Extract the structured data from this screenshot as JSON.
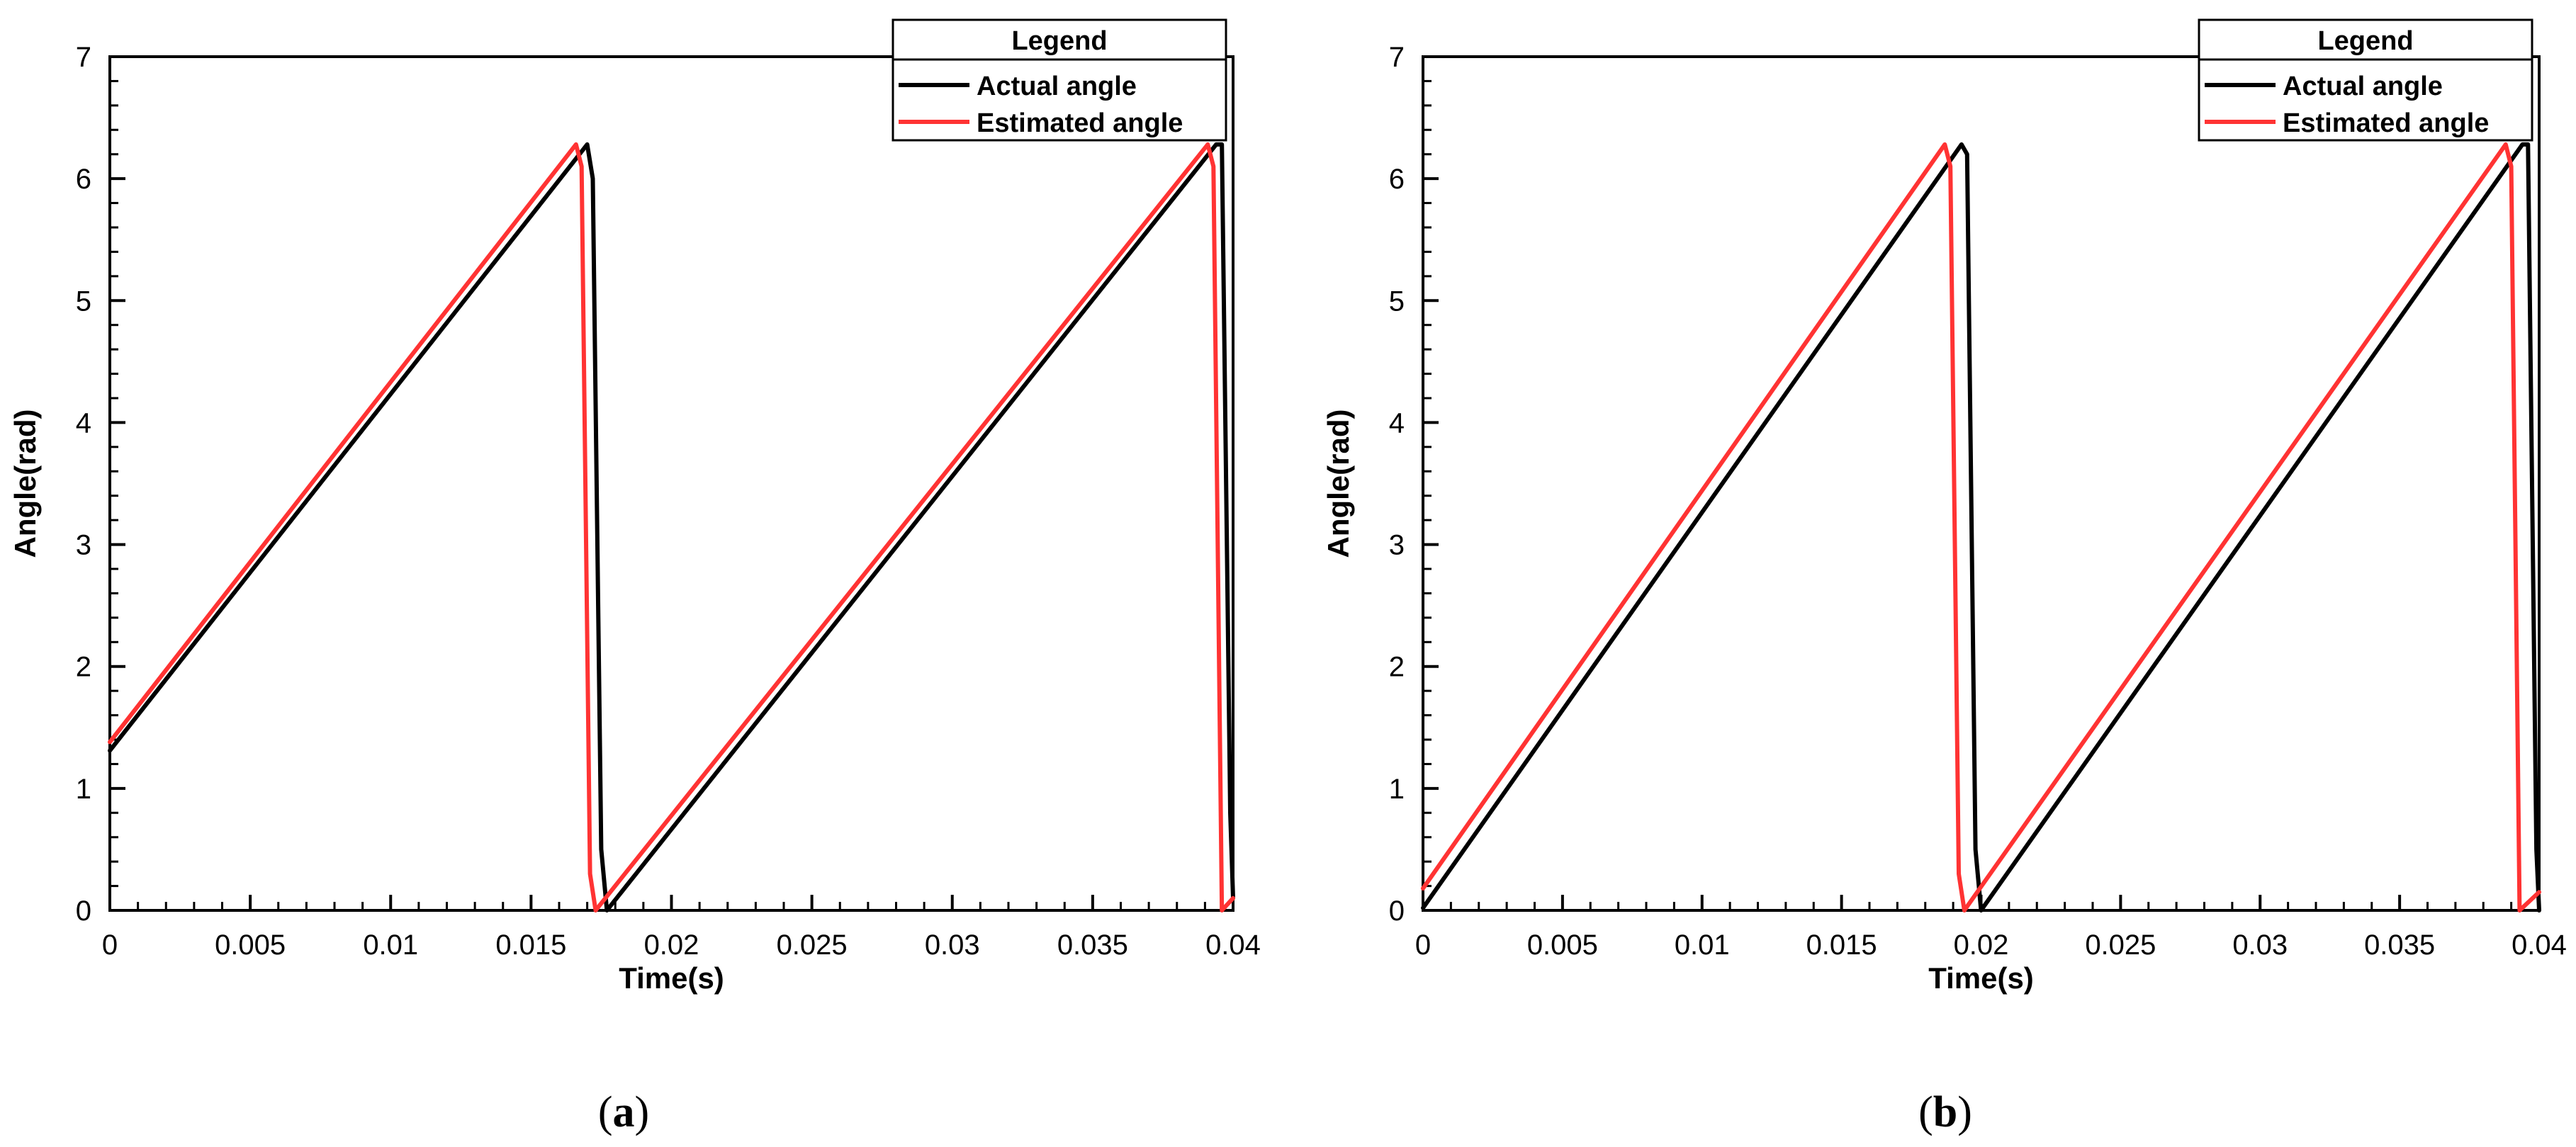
{
  "chart_data": [
    {
      "type": "line",
      "panel_label": "a",
      "xlabel": "Time(s)",
      "ylabel": "Angle(rad)",
      "xlim": [
        0,
        0.04
      ],
      "ylim": [
        0,
        7
      ],
      "x_ticks": [
        0,
        0.005,
        0.01,
        0.015,
        0.02,
        0.025,
        0.03,
        0.035,
        0.04
      ],
      "x_tick_labels": [
        "0",
        "0.005",
        "0.01",
        "0.015",
        "0.02",
        "0.025",
        "0.03",
        "0.035",
        "0.04"
      ],
      "y_ticks": [
        0,
        1,
        2,
        3,
        4,
        5,
        6,
        7
      ],
      "y_tick_labels": [
        "0",
        "1",
        "2",
        "3",
        "4",
        "5",
        "6",
        "7"
      ],
      "grid": false,
      "legend": {
        "title": "Legend",
        "position": "top-right"
      },
      "series": [
        {
          "name": "Actual angle",
          "color": "#000000",
          "x": [
            0,
            0.017,
            0.0172,
            0.0175,
            0.0177,
            0.0394,
            0.0396,
            0.0399,
            0.04
          ],
          "y": [
            1.31,
            6.28,
            6.0,
            0.5,
            0.0,
            6.28,
            6.28,
            0.8,
            0.1
          ]
        },
        {
          "name": "Estimated angle",
          "color": "#ff3333",
          "x": [
            0,
            0.0166,
            0.0168,
            0.0171,
            0.0173,
            0.0391,
            0.0393,
            0.0396,
            0.04
          ],
          "y": [
            1.38,
            6.28,
            6.1,
            0.3,
            0.0,
            6.28,
            6.1,
            0.0,
            0.1
          ]
        }
      ]
    },
    {
      "type": "line",
      "panel_label": "b",
      "xlabel": "Time(s)",
      "ylabel": "Angle(rad)",
      "xlim": [
        0,
        0.04
      ],
      "ylim": [
        0,
        7
      ],
      "x_ticks": [
        0,
        0.005,
        0.01,
        0.015,
        0.02,
        0.025,
        0.03,
        0.035,
        0.04
      ],
      "x_tick_labels": [
        "0",
        "0.005",
        "0.01",
        "0.015",
        "0.02",
        "0.025",
        "0.03",
        "0.035",
        "0.04"
      ],
      "y_ticks": [
        0,
        1,
        2,
        3,
        4,
        5,
        6,
        7
      ],
      "y_tick_labels": [
        "0",
        "1",
        "2",
        "3",
        "4",
        "5",
        "6",
        "7"
      ],
      "grid": false,
      "legend": {
        "title": "Legend",
        "position": "top-right"
      },
      "series": [
        {
          "name": "Actual angle",
          "color": "#000000",
          "x": [
            0,
            0.0193,
            0.0195,
            0.0198,
            0.02,
            0.0394,
            0.0396,
            0.0399,
            0.04
          ],
          "y": [
            0.02,
            6.28,
            6.2,
            0.5,
            0.0,
            6.28,
            6.28,
            0.5,
            0.0
          ]
        },
        {
          "name": "Estimated angle",
          "color": "#ff3333",
          "x": [
            0,
            0.0187,
            0.0189,
            0.0192,
            0.0194,
            0.0388,
            0.039,
            0.0393,
            0.04
          ],
          "y": [
            0.18,
            6.28,
            6.1,
            0.3,
            0.0,
            6.28,
            6.1,
            0.0,
            0.15
          ]
        }
      ]
    }
  ]
}
